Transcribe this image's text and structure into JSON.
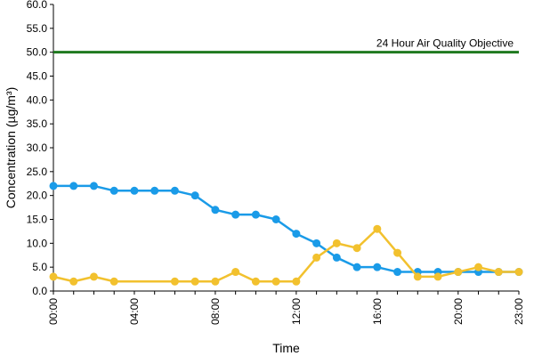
{
  "chart_data": {
    "type": "line",
    "xlabel": "Time",
    "ylabel": "Concentration (µg/m³)",
    "ylim": [
      0,
      60
    ],
    "y_ticks": [
      "0.0",
      "5.0",
      "10.0",
      "15.0",
      "20.0",
      "25.0",
      "30.0",
      "35.0",
      "40.0",
      "45.0",
      "50.0",
      "55.0",
      "60.0"
    ],
    "x_ticks": [
      "00:00",
      "04:00",
      "08:00",
      "12:00",
      "16:00",
      "20:00",
      "23:00"
    ],
    "x_tick_hours": [
      0,
      4,
      8,
      12,
      16,
      20,
      23
    ],
    "xlim": [
      0,
      23
    ],
    "grid": false,
    "objective": {
      "value": 50,
      "label": "24 Hour Air Quality Objective",
      "color": "#1f7a1f"
    },
    "series": [
      {
        "color": "#1a9be8",
        "x": [
          0,
          1,
          2,
          3,
          4,
          5,
          6,
          7,
          8,
          9,
          10,
          11,
          12,
          13,
          14,
          15,
          16,
          17,
          18,
          19,
          20,
          21,
          22,
          23
        ],
        "values": [
          22,
          22,
          22,
          21,
          21,
          21,
          21,
          20,
          17,
          16,
          16,
          15,
          12,
          10,
          7,
          5,
          5,
          4,
          4,
          4,
          4,
          4,
          4,
          4
        ]
      },
      {
        "color": "#f2c12e",
        "x": [
          0,
          1,
          2,
          3,
          6,
          7,
          8,
          9,
          10,
          11,
          12,
          13,
          14,
          15,
          16,
          17,
          18,
          19,
          20,
          21,
          22,
          23
        ],
        "values": [
          3,
          2,
          3,
          2,
          2,
          2,
          2,
          4,
          2,
          2,
          2,
          7,
          10,
          9,
          13,
          8,
          3,
          3,
          4,
          5,
          4,
          4
        ]
      }
    ]
  }
}
